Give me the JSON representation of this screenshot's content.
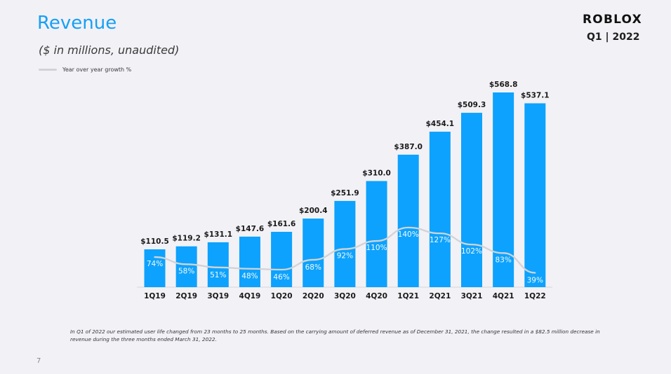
{
  "title": "Revenue",
  "subtitle": "($ in millions,  unaudited)",
  "legend_label": "Year over year growth %",
  "brand": "ROBLOX",
  "period": "Q1 | 2022",
  "footnote": "In Q1 of 2022 our estimated user life changed from 23 months to 25 months. Based on the carrying amount of deferred revenue as of December 31, 2021, the change resulted in a $82.5 million decrease in revenue during the three months ended March 31, 2022.",
  "page_number": "7",
  "colors": {
    "bar": "#0da2fd",
    "growth_line": "#d3d3d5",
    "title": "#16a0f5"
  },
  "chart_data": {
    "type": "bar",
    "categories": [
      "1Q19",
      "2Q19",
      "3Q19",
      "4Q19",
      "1Q20",
      "2Q20",
      "3Q20",
      "4Q20",
      "1Q21",
      "2Q21",
      "3Q21",
      "4Q21",
      "1Q22"
    ],
    "series": [
      {
        "values": [
          110.5,
          119.2,
          131.1,
          147.6,
          161.6,
          200.4,
          251.9,
          310.0,
          387.0,
          454.1,
          509.3,
          568.8,
          537.1
        ],
        "labels": [
          "$110.5",
          "$119.2",
          "$131.1",
          "$147.6",
          "$161.6",
          "$200.4",
          "$251.9",
          "$310.0",
          "$387.0",
          "$454.1",
          "$509.3",
          "$568.8",
          "$537.1"
        ]
      },
      {
        "name": "Year over year growth %",
        "type": "line",
        "values": [
          74,
          58,
          51,
          48,
          46,
          68,
          92,
          110,
          140,
          127,
          102,
          83,
          39
        ],
        "labels": [
          "74%",
          "58%",
          "51%",
          "48%",
          "46%",
          "68%",
          "92%",
          "110%",
          "140%",
          "127%",
          "102%",
          "83%",
          "39%"
        ]
      }
    ],
    "title": "Revenue",
    "xlabel": "",
    "ylabel": "",
    "ylim": [
      0,
      568.8
    ],
    "grid": false,
    "legend": "top-left"
  }
}
